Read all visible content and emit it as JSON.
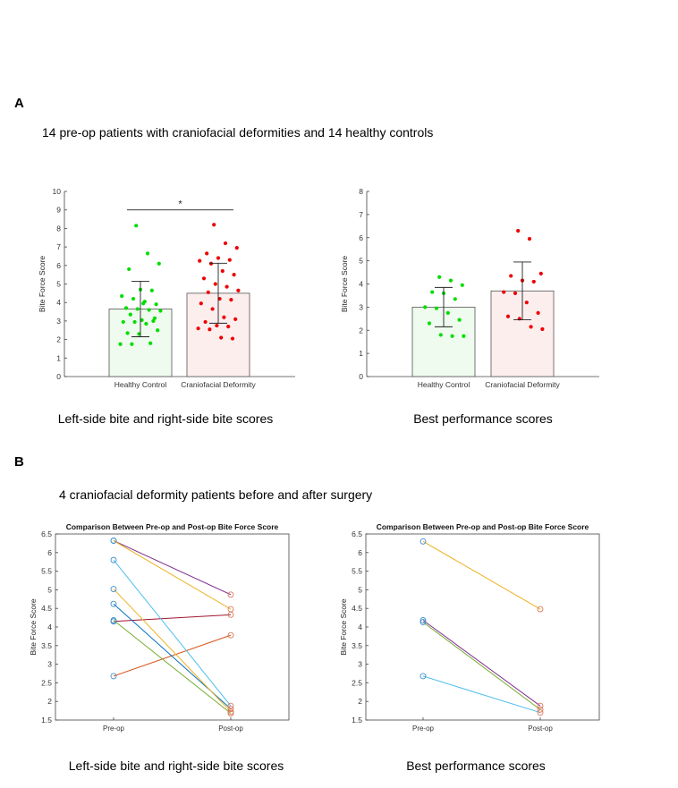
{
  "panel_a": {
    "letter": "A",
    "subtitle": "14 pre-op patients with craniofacial deformities and 14 healthy controls",
    "captions": [
      "Left-side bite and right-side bite scores",
      "Best performance scores"
    ]
  },
  "panel_b": {
    "letter": "B",
    "subtitle": "4 craniofacial deformity patients before and after surgery",
    "captions": [
      "Left-side bite and right-side bite scores",
      "Best performance scores"
    ]
  },
  "colors": {
    "healthy_point": "#00dd00",
    "deformity_point": "#ee0000",
    "healthy_bar": "#eefbee",
    "deformity_bar": "#fdeeee",
    "pre_marker": "#3e8ec9",
    "post_marker": "#d9785a"
  },
  "chart_data": [
    {
      "type": "bar",
      "id": "a-left",
      "title": "",
      "xlabel": "",
      "ylabel": "Bite Force Score",
      "ylim": [
        0,
        10
      ],
      "yticks": [
        0,
        1,
        2,
        3,
        4,
        5,
        6,
        7,
        8,
        9,
        10
      ],
      "categories": [
        "Healthy Control",
        "Craniofacial Deformity"
      ],
      "values": [
        3.65,
        4.5
      ],
      "error": [
        [
          2.15,
          5.15
        ],
        [
          2.88,
          6.12
        ]
      ],
      "significance": {
        "label": "*",
        "y": 9.0
      },
      "points": [
        [
          8.15,
          6.65,
          6.1,
          5.8,
          4.7,
          4.65,
          4.35,
          4.2,
          4.05,
          3.9,
          3.7,
          3.65,
          3.6,
          3.55,
          3.35,
          3.05,
          3.0,
          2.95,
          2.95,
          2.85,
          2.5,
          2.35,
          2.3,
          1.8,
          1.75,
          1.75,
          3.95,
          3.15
        ],
        [
          8.2,
          7.2,
          6.95,
          6.65,
          6.4,
          6.3,
          6.25,
          6.1,
          5.7,
          5.5,
          5.3,
          5.0,
          4.85,
          4.65,
          4.55,
          4.2,
          4.15,
          3.95,
          3.65,
          3.2,
          3.1,
          2.95,
          2.75,
          2.7,
          2.6,
          2.55,
          2.1,
          2.05
        ]
      ]
    },
    {
      "type": "bar",
      "id": "a-right",
      "title": "",
      "xlabel": "",
      "ylabel": "Bite Force Score",
      "ylim": [
        0,
        8
      ],
      "yticks": [
        0,
        1,
        2,
        3,
        4,
        5,
        6,
        7,
        8
      ],
      "categories": [
        "Healthy Control",
        "Craniofacial Deformity"
      ],
      "values": [
        3.0,
        3.7
      ],
      "error": [
        [
          2.15,
          3.85
        ],
        [
          2.45,
          4.95
        ]
      ],
      "points": [
        [
          4.3,
          4.15,
          3.95,
          3.65,
          3.6,
          3.35,
          3.0,
          2.95,
          2.75,
          2.45,
          2.3,
          1.8,
          1.75,
          1.75
        ],
        [
          6.3,
          5.95,
          4.45,
          4.35,
          4.15,
          4.1,
          3.65,
          3.6,
          3.2,
          2.75,
          2.6,
          2.5,
          2.15,
          2.05
        ]
      ]
    },
    {
      "type": "line",
      "id": "b-left",
      "title": "Comparison Between Pre-op and Post-op Bite Force Score",
      "xlabel": "",
      "ylabel": "Bite Force Score",
      "categories": [
        "Pre-op",
        "Post-op"
      ],
      "ylim": [
        1.5,
        6.5
      ],
      "yticks": [
        1.5,
        2,
        2.5,
        3,
        3.5,
        4,
        4.5,
        5,
        5.5,
        6,
        6.5
      ],
      "series": [
        {
          "values": [
            6.32,
            4.87
          ],
          "color": "#7e2f8e"
        },
        {
          "values": [
            6.32,
            4.48
          ],
          "color": "#edb120"
        },
        {
          "values": [
            4.15,
            4.33
          ],
          "color": "#a2142f"
        },
        {
          "values": [
            2.68,
            3.78
          ],
          "color": "#d95319"
        },
        {
          "values": [
            5.8,
            1.88
          ],
          "color": "#4dbeee"
        },
        {
          "values": [
            4.62,
            1.8
          ],
          "color": "#0072bd"
        },
        {
          "values": [
            5.02,
            1.72
          ],
          "color": "#edb120"
        },
        {
          "values": [
            4.18,
            1.68
          ],
          "color": "#77ac30"
        }
      ]
    },
    {
      "type": "line",
      "id": "b-right",
      "title": "Comparison Between Pre-op and Post-op Bite Force Score",
      "xlabel": "",
      "ylabel": "Bite Force Score",
      "categories": [
        "Pre-op",
        "Post-op"
      ],
      "ylim": [
        1.5,
        6.5
      ],
      "yticks": [
        1.5,
        2,
        2.5,
        3,
        3.5,
        4,
        4.5,
        5,
        5.5,
        6,
        6.5
      ],
      "series": [
        {
          "values": [
            6.3,
            4.48
          ],
          "color": "#edb120"
        },
        {
          "values": [
            4.18,
            1.88
          ],
          "color": "#7e2f8e"
        },
        {
          "values": [
            4.13,
            1.78
          ],
          "color": "#77ac30"
        },
        {
          "values": [
            2.68,
            1.7
          ],
          "color": "#4dbeee"
        }
      ]
    }
  ]
}
